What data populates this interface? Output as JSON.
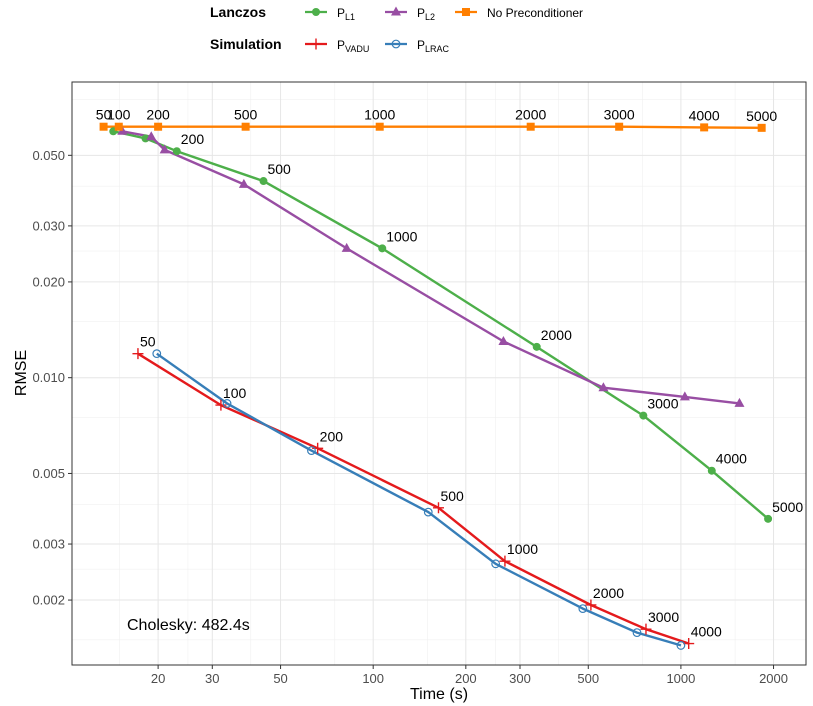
{
  "chart_data": {
    "type": "line",
    "title": "",
    "xlabel": "Time (s)",
    "ylabel": "RMSE",
    "x_scale": "log",
    "y_scale": "log",
    "xlim": [
      10.5,
      2550
    ],
    "ylim": [
      0.00125,
      0.085
    ],
    "x_ticks": [
      20,
      30,
      50,
      100,
      200,
      300,
      500,
      1000,
      2000
    ],
    "y_ticks": [
      0.002,
      0.003,
      0.005,
      0.01,
      0.02,
      0.03,
      0.05
    ],
    "y_tick_labels": [
      "0.002",
      "0.003",
      "0.005",
      "0.010",
      "0.020",
      "0.030",
      "0.050"
    ],
    "grid": true,
    "legend_placement": "top",
    "legend": {
      "groups": [
        {
          "title": "Lanczos",
          "entries": [
            {
              "series": "PL1",
              "base": "P",
              "sub": "L1"
            },
            {
              "series": "PL2",
              "base": "P",
              "sub": "L2"
            },
            {
              "series": "NoPre",
              "base": "No Preconditioner",
              "sub": ""
            }
          ]
        },
        {
          "title": "Simulation",
          "entries": [
            {
              "series": "PVADU",
              "base": "P",
              "sub": "VADU"
            },
            {
              "series": "PLRAC",
              "base": "P",
              "sub": "LRAC"
            }
          ]
        }
      ]
    },
    "series": [
      {
        "key": "PL1",
        "group": "Lanczos",
        "color": "#4daf4a",
        "marker": "circle",
        "x": [
          14.3,
          18.2,
          23.0,
          44.0,
          107.0,
          340.0,
          755.0,
          1260.0,
          1920.0
        ],
        "y": [
          0.0595,
          0.0565,
          0.0515,
          0.0415,
          0.0255,
          0.0125,
          0.0076,
          0.0051,
          0.0036
        ],
        "labels": [
          "",
          "",
          "200",
          "500",
          "1000",
          "2000",
          "3000",
          "4000",
          "5000"
        ]
      },
      {
        "key": "PL2",
        "group": "Lanczos",
        "color": "#984ea3",
        "marker": "triangle",
        "x": [
          15.3,
          19.0,
          21.0,
          38.0,
          82.0,
          265.0,
          560.0,
          1030.0,
          1550.0
        ],
        "y": [
          0.0595,
          0.0572,
          0.052,
          0.0405,
          0.0255,
          0.013,
          0.0093,
          0.0087,
          0.0083
        ],
        "labels": [
          "",
          "",
          "",
          "",
          "",
          "",
          "",
          "",
          ""
        ]
      },
      {
        "key": "NoPre",
        "group": "Lanczos",
        "color": "#ff7f00",
        "marker": "square",
        "x": [
          13.3,
          14.9,
          20.0,
          38.5,
          105.0,
          325.0,
          630.0,
          1190.0,
          1830.0
        ],
        "y": [
          0.0615,
          0.0615,
          0.0615,
          0.0615,
          0.0615,
          0.0615,
          0.0615,
          0.0612,
          0.061
        ],
        "labels": [
          "50",
          "100",
          "200",
          "500",
          "1000",
          "2000",
          "3000",
          "4000",
          "5000"
        ]
      },
      {
        "key": "PVADU",
        "group": "Simulation",
        "color": "#e41a1c",
        "marker": "plus",
        "x": [
          17.2,
          32.0,
          66.0,
          163.0,
          268.0,
          510.0,
          770.0,
          1060.0
        ],
        "y": [
          0.0119,
          0.0082,
          0.006,
          0.0039,
          0.00265,
          0.00193,
          0.00162,
          0.00146
        ],
        "labels": [
          "50",
          "100",
          "200",
          "500",
          "1000",
          "2000",
          "3000",
          "4000"
        ]
      },
      {
        "key": "PLRAC",
        "group": "Simulation",
        "color": "#377eb8",
        "marker": "circle-open",
        "x": [
          19.8,
          33.5,
          63.0,
          151.0,
          250.0,
          480.0,
          720.0,
          1000.0
        ],
        "y": [
          0.0119,
          0.0083,
          0.0059,
          0.00378,
          0.0026,
          0.00188,
          0.00158,
          0.00144
        ],
        "labels": [
          "",
          "",
          "",
          "",
          "",
          "",
          "",
          ""
        ]
      }
    ],
    "annotations": [
      {
        "text": "Cholesky: 482.4s"
      }
    ]
  }
}
